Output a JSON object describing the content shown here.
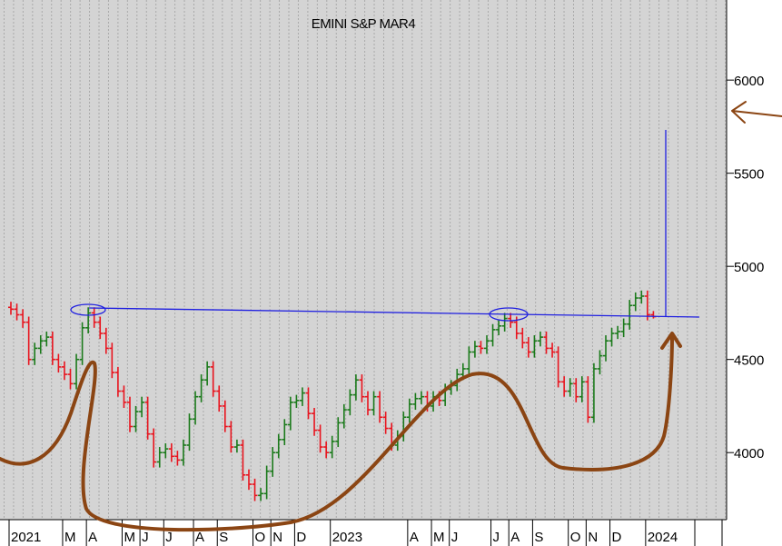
{
  "chart_data": {
    "type": "ohlc",
    "title": "EMINI S&P MAR4",
    "ylim": [
      3640,
      6430
    ],
    "yticks": [
      4000,
      4500,
      5000,
      5500,
      6000
    ],
    "up_color": "#1b7a1b",
    "down_color": "#e8141e",
    "categories": [
      "2021",
      null,
      null,
      null,
      null,
      null,
      null,
      null,
      null,
      "M",
      null,
      null,
      null,
      "A",
      null,
      null,
      null,
      null,
      null,
      "M",
      null,
      null,
      "J",
      null,
      null,
      null,
      "J",
      null,
      null,
      null,
      null,
      "A",
      null,
      null,
      null,
      "S",
      null,
      null,
      null,
      null,
      null,
      "O",
      null,
      null,
      "N",
      null,
      null,
      null,
      "D",
      null,
      null,
      null,
      null,
      null,
      "2023",
      null,
      null,
      null,
      null,
      null,
      null,
      null,
      null,
      null,
      null,
      null,
      null,
      "A",
      null,
      null,
      null,
      "M",
      null,
      null,
      "J",
      null,
      null,
      null,
      null,
      null,
      null,
      "J",
      null,
      null,
      "A",
      null,
      null,
      null,
      "S",
      null,
      null,
      null,
      null,
      null,
      "O",
      null,
      null,
      "N",
      null,
      null,
      null,
      "D",
      null,
      null,
      null,
      null,
      null,
      "2024",
      null
    ],
    "open": [
      4780,
      4770,
      4740,
      4700,
      4500,
      4560,
      4600,
      4620,
      4500,
      4460,
      4420,
      4370,
      4500,
      4670,
      4750,
      4700,
      4640,
      4560,
      4430,
      4330,
      4270,
      4140,
      4220,
      4270,
      4100,
      3950,
      4000,
      4020,
      3980,
      3960,
      4040,
      4180,
      4300,
      4390,
      4460,
      4330,
      4250,
      4140,
      4030,
      4040,
      3880,
      3830,
      3770,
      3780,
      3900,
      4000,
      4070,
      4150,
      4270,
      4280,
      4320,
      4210,
      4120,
      4030,
      4000,
      4060,
      4160,
      4230,
      4310,
      4390,
      4300,
      4230,
      4300,
      4190,
      4130,
      4040,
      4090,
      4190,
      4260,
      4290,
      4300,
      4250,
      4300,
      4280,
      4340,
      4360,
      4420,
      4450,
      4540,
      4570,
      4560,
      4600,
      4660,
      4680,
      4720,
      4700,
      4640,
      4590,
      4540,
      4600,
      4620,
      4560,
      4540,
      4380,
      4330,
      4370,
      4300,
      4380,
      4190,
      4450,
      4520,
      4600,
      4640,
      4650,
      4690,
      4790,
      4830,
      4840,
      4740
    ],
    "high": [
      4810,
      4800,
      4770,
      4730,
      4590,
      4630,
      4650,
      4650,
      4530,
      4490,
      4450,
      4530,
      4700,
      4780,
      4780,
      4730,
      4670,
      4590,
      4460,
      4360,
      4300,
      4250,
      4300,
      4300,
      4130,
      4030,
      4050,
      4050,
      4010,
      4070,
      4210,
      4330,
      4420,
      4490,
      4490,
      4360,
      4280,
      4170,
      4070,
      4070,
      3910,
      3860,
      3810,
      3930,
      4030,
      4100,
      4180,
      4300,
      4310,
      4350,
      4350,
      4240,
      4150,
      4060,
      4090,
      4190,
      4260,
      4340,
      4420,
      4420,
      4330,
      4330,
      4330,
      4220,
      4160,
      4120,
      4220,
      4290,
      4320,
      4330,
      4330,
      4330,
      4330,
      4370,
      4390,
      4450,
      4480,
      4570,
      4600,
      4600,
      4630,
      4690,
      4710,
      4750,
      4750,
      4730,
      4670,
      4620,
      4630,
      4650,
      4650,
      4590,
      4570,
      4410,
      4400,
      4400,
      4410,
      4410,
      4480,
      4550,
      4630,
      4670,
      4680,
      4720,
      4820,
      4860,
      4870,
      4870,
      4760
    ],
    "low": [
      4740,
      4710,
      4670,
      4470,
      4470,
      4530,
      4570,
      4470,
      4430,
      4390,
      4340,
      4340,
      4470,
      4640,
      4670,
      4610,
      4530,
      4400,
      4300,
      4240,
      4110,
      4110,
      4190,
      4070,
      3920,
      3920,
      3970,
      3950,
      3930,
      3930,
      4010,
      4150,
      4270,
      4360,
      4300,
      4220,
      4110,
      4000,
      4000,
      3850,
      3800,
      3740,
      3740,
      3750,
      3870,
      3970,
      4040,
      4120,
      4240,
      4250,
      4180,
      4090,
      4000,
      3970,
      3970,
      4030,
      4130,
      4200,
      4280,
      4270,
      4200,
      4200,
      4160,
      4100,
      4010,
      4010,
      4060,
      4160,
      4230,
      4260,
      4220,
      4220,
      4250,
      4250,
      4310,
      4330,
      4390,
      4420,
      4510,
      4530,
      4530,
      4570,
      4630,
      4650,
      4670,
      4610,
      4560,
      4510,
      4510,
      4570,
      4530,
      4510,
      4350,
      4300,
      4300,
      4270,
      4270,
      4160,
      4160,
      4420,
      4490,
      4570,
      4610,
      4620,
      4660,
      4760,
      4800,
      4710,
      4720
    ],
    "close": [
      4770,
      4740,
      4700,
      4500,
      4560,
      4600,
      4620,
      4500,
      4460,
      4420,
      4370,
      4500,
      4670,
      4750,
      4700,
      4640,
      4560,
      4430,
      4330,
      4270,
      4140,
      4220,
      4270,
      4100,
      3950,
      4000,
      4020,
      3980,
      3960,
      4040,
      4180,
      4300,
      4390,
      4460,
      4330,
      4250,
      4140,
      4030,
      4040,
      3880,
      3830,
      3770,
      3780,
      3900,
      4000,
      4070,
      4150,
      4270,
      4280,
      4320,
      4210,
      4120,
      4030,
      4000,
      4060,
      4160,
      4230,
      4310,
      4390,
      4300,
      4230,
      4300,
      4190,
      4130,
      4040,
      4090,
      4190,
      4260,
      4290,
      4300,
      4250,
      4300,
      4280,
      4340,
      4360,
      4420,
      4450,
      4540,
      4570,
      4560,
      4600,
      4660,
      4680,
      4720,
      4700,
      4640,
      4590,
      4540,
      4600,
      4620,
      4560,
      4540,
      4380,
      4330,
      4370,
      4300,
      4380,
      4190,
      4450,
      4520,
      4600,
      4640,
      4650,
      4690,
      4790,
      4830,
      4840,
      4740,
      4730
    ]
  }
}
